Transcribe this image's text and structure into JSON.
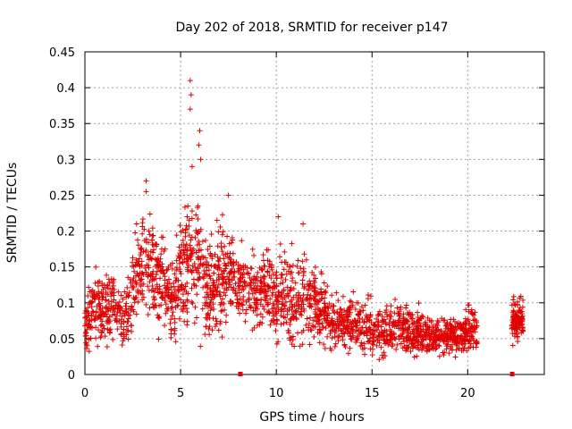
{
  "chart_data": {
    "type": "scatter",
    "title": "Day 202 of 2018, SRMTID for receiver p147",
    "xlabel": "GPS time / hours",
    "ylabel": "SRMTID / TECUs",
    "xlim": [
      0,
      24
    ],
    "ylim": [
      0,
      0.45
    ],
    "xticks": [
      0,
      5,
      10,
      15,
      20
    ],
    "xtick_labels": [
      "0",
      "5",
      "10",
      "15",
      "20"
    ],
    "yticks": [
      0,
      0.05,
      0.1,
      0.15,
      0.2,
      0.25,
      0.3,
      0.35,
      0.4,
      0.45
    ],
    "ytick_labels": [
      "0",
      "0.05",
      "0.1",
      "0.15",
      "0.2",
      "0.25",
      "0.3",
      "0.35",
      "0.4",
      "0.45"
    ],
    "grid": true,
    "marker": "plus",
    "color": "#e00000",
    "series": [
      {
        "name": "SRMTID",
        "envelope": {
          "x": [
            0.0,
            0.5,
            1.0,
            1.5,
            2.0,
            2.5,
            3.0,
            3.5,
            4.0,
            4.5,
            5.0,
            5.5,
            6.0,
            6.5,
            7.0,
            7.5,
            8.0,
            8.5,
            9.0,
            9.5,
            10.0,
            10.5,
            11.0,
            11.5,
            12.0,
            12.5,
            13.0,
            13.5,
            14.0,
            14.5,
            15.0,
            15.5,
            16.0,
            16.5,
            17.0,
            17.5,
            18.0,
            18.5,
            19.0,
            19.5,
            20.0,
            20.5
          ],
          "mean": [
            0.07,
            0.09,
            0.09,
            0.1,
            0.07,
            0.12,
            0.15,
            0.14,
            0.13,
            0.1,
            0.14,
            0.17,
            0.14,
            0.12,
            0.13,
            0.15,
            0.13,
            0.12,
            0.11,
            0.12,
            0.1,
            0.11,
            0.1,
            0.11,
            0.1,
            0.09,
            0.07,
            0.07,
            0.07,
            0.065,
            0.065,
            0.06,
            0.065,
            0.07,
            0.06,
            0.06,
            0.055,
            0.055,
            0.055,
            0.055,
            0.06,
            0.06
          ],
          "spread": [
            0.02,
            0.03,
            0.03,
            0.03,
            0.02,
            0.04,
            0.04,
            0.04,
            0.04,
            0.03,
            0.04,
            0.05,
            0.05,
            0.04,
            0.04,
            0.04,
            0.03,
            0.03,
            0.03,
            0.03,
            0.03,
            0.04,
            0.04,
            0.04,
            0.03,
            0.03,
            0.02,
            0.02,
            0.02,
            0.02,
            0.02,
            0.02,
            0.02,
            0.02,
            0.02,
            0.02,
            0.015,
            0.015,
            0.015,
            0.015,
            0.02,
            0.02
          ]
        },
        "late_segment": {
          "x_range": [
            22.3,
            22.9
          ],
          "mean": 0.075,
          "spread": 0.015
        },
        "spikes": [
          {
            "x": 5.5,
            "y": 0.41
          },
          {
            "x": 5.55,
            "y": 0.39
          },
          {
            "x": 5.5,
            "y": 0.37
          },
          {
            "x": 6.0,
            "y": 0.34
          },
          {
            "x": 5.95,
            "y": 0.32
          },
          {
            "x": 6.05,
            "y": 0.3
          },
          {
            "x": 5.6,
            "y": 0.29
          },
          {
            "x": 3.2,
            "y": 0.27
          },
          {
            "x": 3.2,
            "y": 0.255
          },
          {
            "x": 7.5,
            "y": 0.25
          },
          {
            "x": 10.1,
            "y": 0.22
          },
          {
            "x": 11.4,
            "y": 0.21
          },
          {
            "x": 2.7,
            "y": 0.21
          },
          {
            "x": 6.9,
            "y": 0.215
          }
        ],
        "zero_markers": [
          8.1,
          22.3
        ]
      }
    ]
  }
}
